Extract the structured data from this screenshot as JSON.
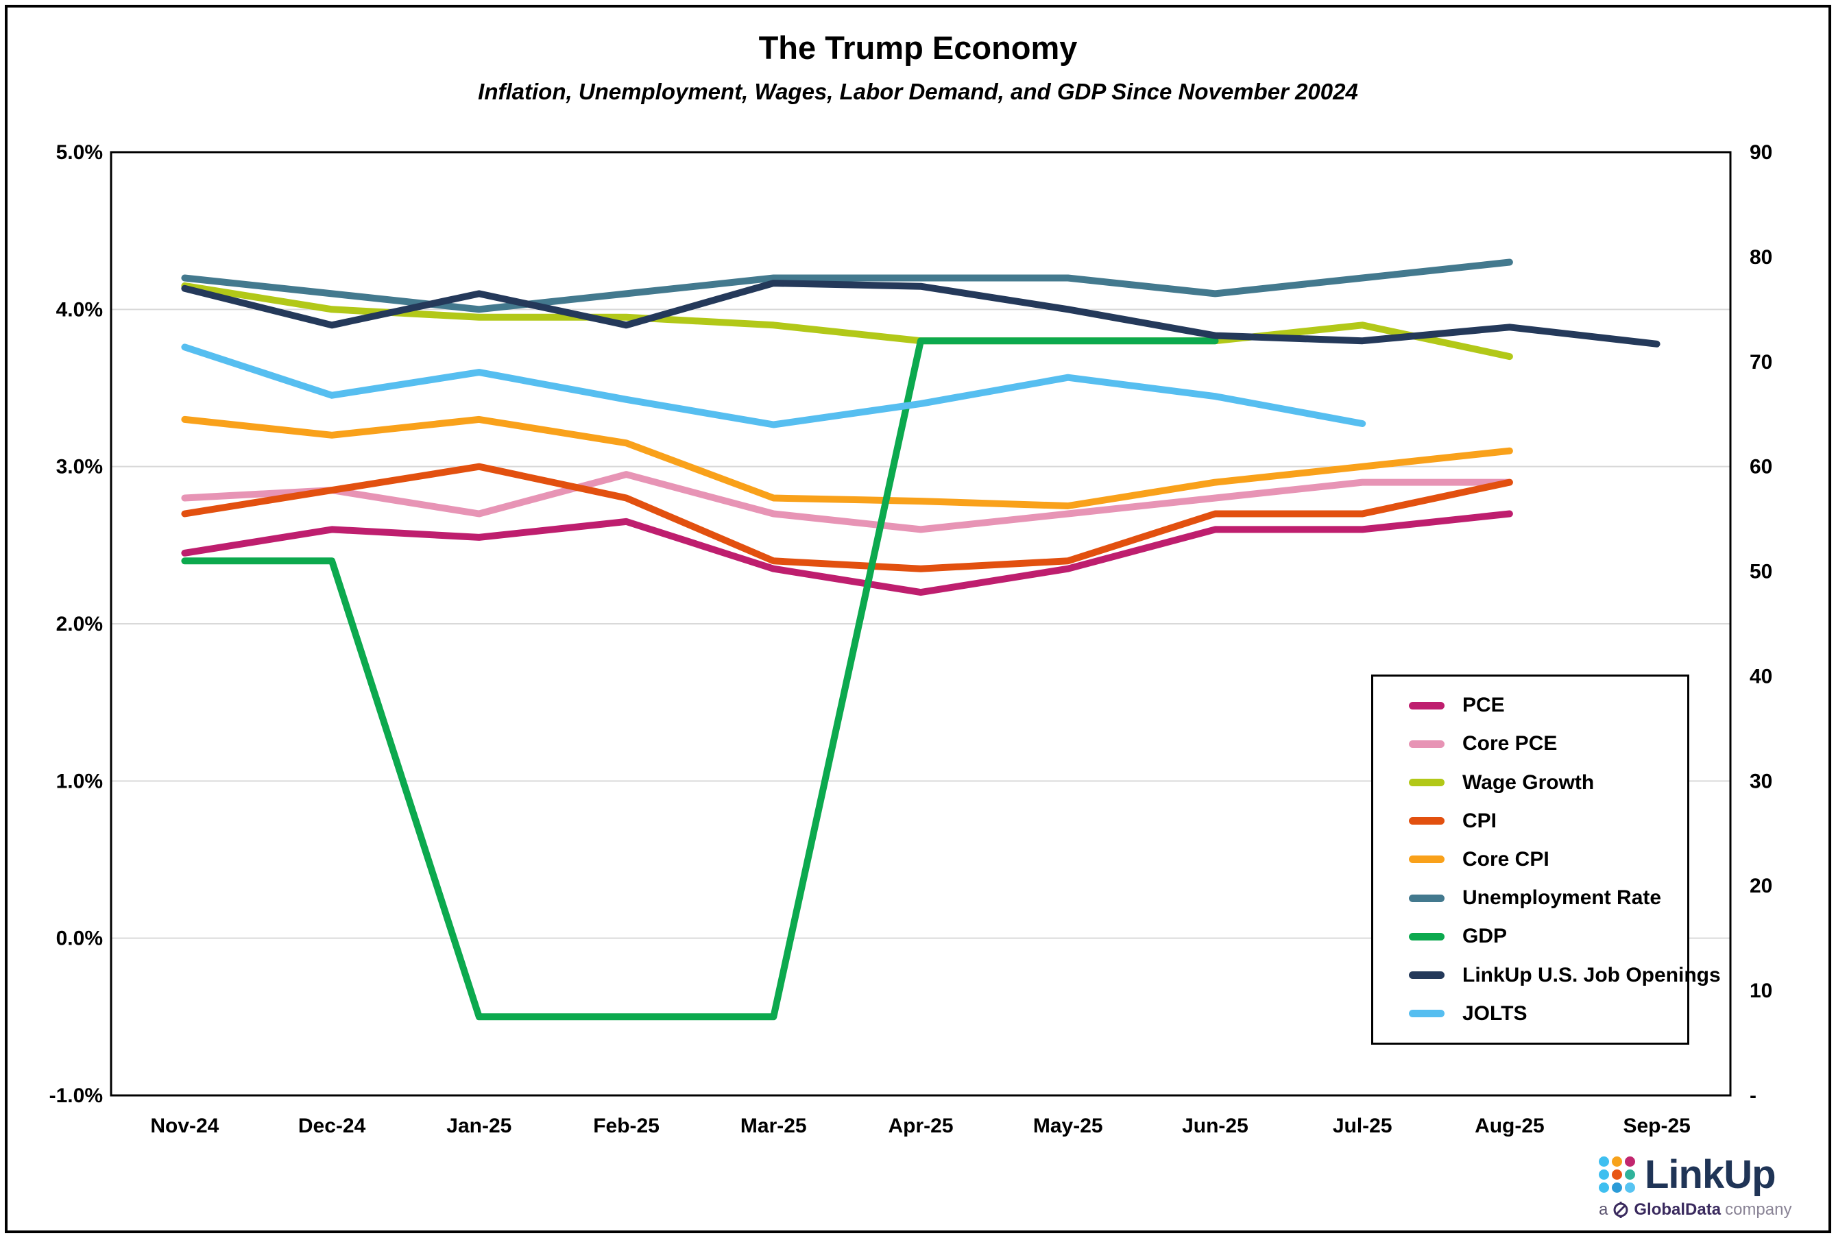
{
  "header": {
    "title": "The Trump Economy",
    "subtitle": "Inflation, Unemployment, Wages, Labor Demand, and GDP Since November 20024"
  },
  "chart_data": {
    "type": "line",
    "categories": [
      "Nov-24",
      "Dec-24",
      "Jan-25",
      "Feb-25",
      "Mar-25",
      "Apr-25",
      "May-25",
      "Jun-25",
      "Jul-25",
      "Aug-25",
      "Sep-25"
    ],
    "left_axis": {
      "ticks": [
        "5.0%",
        "4.0%",
        "3.0%",
        "2.0%",
        "1.0%",
        "0.0%",
        "-1.0%"
      ],
      "tick_values": [
        5,
        4,
        3,
        2,
        1,
        0,
        -1
      ],
      "max": 5,
      "min": -1
    },
    "right_axis": {
      "ticks": [
        "90",
        "80",
        "70",
        "60",
        "50",
        "40",
        "30",
        "20",
        "10",
        "-"
      ],
      "tick_values": [
        90,
        80,
        70,
        60,
        50,
        40,
        30,
        20,
        10,
        0
      ],
      "max": 90,
      "min": 0
    },
    "grid": true,
    "grid_color": "#d9d9d9",
    "legend_position": "inside-bottom-right",
    "series": [
      {
        "name": "PCE",
        "color": "#be1e6e",
        "axis": "left",
        "values": [
          2.45,
          2.6,
          2.55,
          2.65,
          2.35,
          2.2,
          2.35,
          2.6,
          2.6,
          2.7,
          null
        ]
      },
      {
        "name": "Core PCE",
        "color": "#e794b5",
        "axis": "left",
        "values": [
          2.8,
          2.85,
          2.7,
          2.95,
          2.7,
          2.6,
          2.7,
          2.8,
          2.9,
          2.9,
          null
        ]
      },
      {
        "name": "Wage Growth",
        "color": "#b2c818",
        "axis": "left",
        "values": [
          4.15,
          4.0,
          3.95,
          3.95,
          3.9,
          3.8,
          3.8,
          3.8,
          3.9,
          3.7,
          null
        ]
      },
      {
        "name": "CPI",
        "color": "#e2500f",
        "axis": "left",
        "values": [
          2.7,
          2.85,
          3.0,
          2.8,
          2.4,
          2.35,
          2.4,
          2.7,
          2.7,
          2.9,
          null
        ]
      },
      {
        "name": "Core CPI",
        "color": "#f9a11a",
        "axis": "left",
        "values": [
          3.3,
          3.2,
          3.3,
          3.15,
          2.8,
          2.78,
          2.75,
          2.9,
          3.0,
          3.1,
          null
        ]
      },
      {
        "name": "Unemployment Rate",
        "color": "#43798e",
        "axis": "left",
        "values": [
          4.2,
          4.1,
          4.0,
          4.1,
          4.2,
          4.2,
          4.2,
          4.1,
          4.2,
          4.3,
          null
        ]
      },
      {
        "name": "GDP",
        "color": "#0ca94e",
        "axis": "left",
        "values": [
          2.4,
          2.4,
          -0.5,
          -0.5,
          -0.5,
          3.8,
          3.8,
          3.8,
          null,
          null,
          null
        ]
      },
      {
        "name": "LinkUp U.S. Job Openings",
        "color": "#24395a",
        "axis": "right",
        "values": [
          77,
          73.5,
          76.5,
          73.5,
          77.5,
          77.2,
          75,
          72.5,
          72,
          73.3,
          71.7
        ]
      },
      {
        "name": "JOLTS",
        "color": "#56bef0",
        "axis": "right",
        "values": [
          71.4,
          66.8,
          69,
          66.4,
          64,
          66,
          68.5,
          66.7,
          64.1,
          null,
          null
        ]
      }
    ]
  },
  "logo": {
    "brand": "LinkUp",
    "brand_color": "#1f3456",
    "tagline_prefix": "a",
    "tagline_brand": "GlobalData",
    "tagline_suffix": "company",
    "dot_colors": [
      "#3fbff0",
      "#f7a21b",
      "#c2266e",
      "#3fbff0",
      "#e85513",
      "#2fb39b",
      "#3fbff0",
      "#2b9bd7",
      "#57c4f2"
    ]
  }
}
